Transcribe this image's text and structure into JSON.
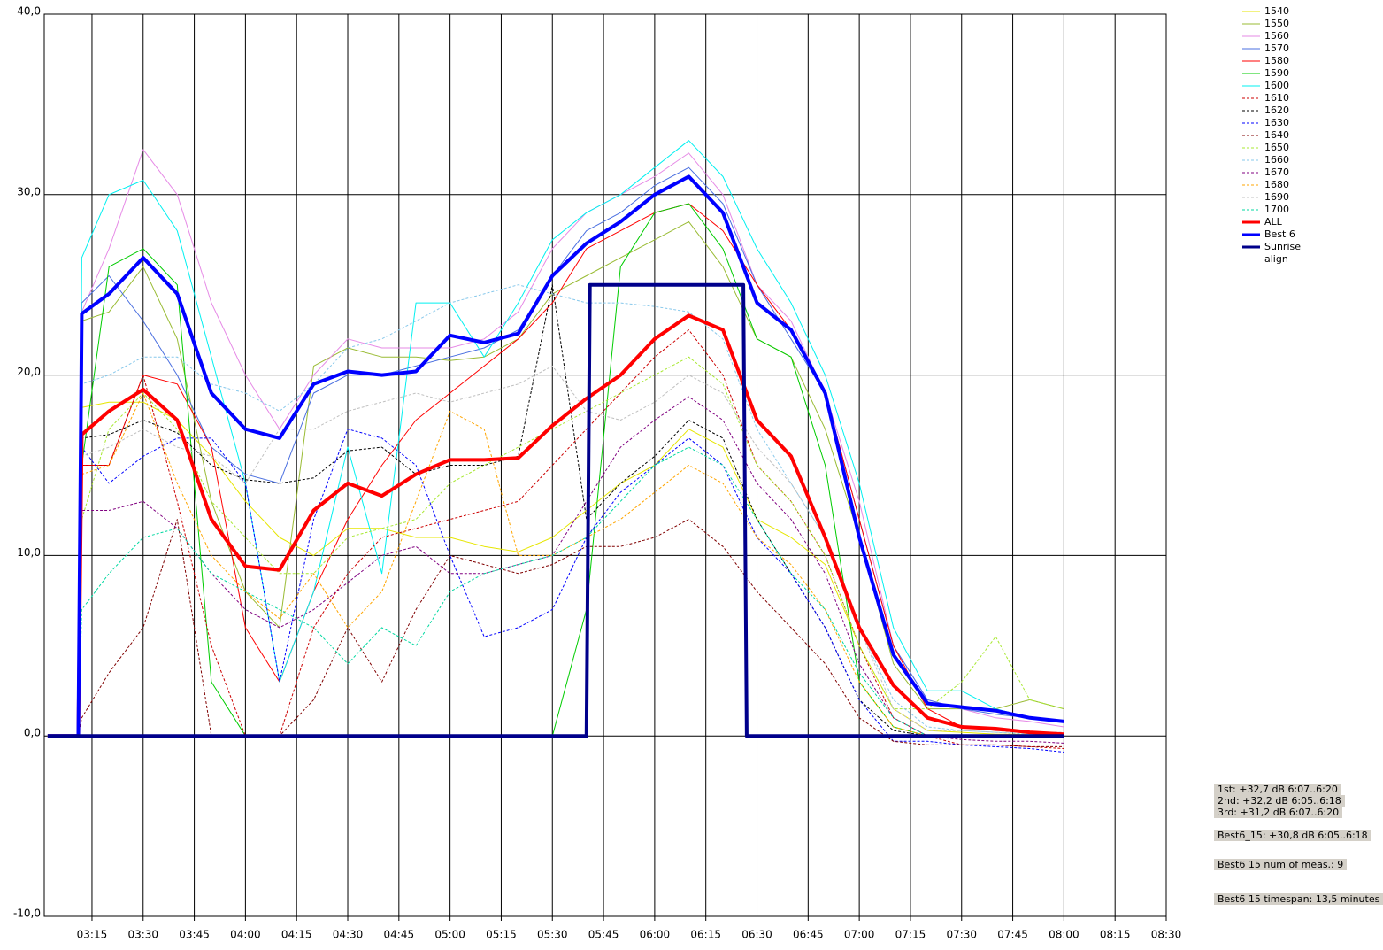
{
  "chart_data": {
    "type": "line",
    "x": [
      "03:02",
      "03:11",
      "03:12",
      "03:20",
      "03:30",
      "03:40",
      "03:50",
      "04:00",
      "04:10",
      "04:20",
      "04:30",
      "04:40",
      "04:50",
      "05:00",
      "05:10",
      "05:20",
      "05:30",
      "05:40",
      "05:50",
      "06:00",
      "06:10",
      "06:20",
      "06:30",
      "06:40",
      "06:50",
      "07:00",
      "07:10",
      "07:20",
      "07:30",
      "07:40",
      "07:50",
      "08:00"
    ],
    "xlim": [
      "03:01",
      "08:30"
    ],
    "xticks": [
      "03:15",
      "03:30",
      "03:45",
      "04:00",
      "04:15",
      "04:30",
      "04:45",
      "05:00",
      "05:15",
      "05:30",
      "05:45",
      "06:00",
      "06:15",
      "06:30",
      "06:45",
      "07:00",
      "07:15",
      "07:30",
      "07:45",
      "08:00",
      "08:15",
      "08:30"
    ],
    "ylim": [
      -10,
      40
    ],
    "yticks": [
      {
        "value": -10,
        "label": "-10,0"
      },
      {
        "value": 0,
        "label": "0,0"
      },
      {
        "value": 10,
        "label": "10,0"
      },
      {
        "value": 20,
        "label": "20,0"
      },
      {
        "value": 30,
        "label": "30,0"
      },
      {
        "value": 40,
        "label": "40,0"
      }
    ],
    "grid": true,
    "legend": "right",
    "series": [
      {
        "name": "1540",
        "color": "#e6e600",
        "values": [
          0,
          0,
          18.2,
          18.5,
          18.5,
          17.5,
          15.5,
          13,
          11,
          10,
          11.5,
          11.5,
          11,
          11,
          10.5,
          10.2,
          11,
          12.5,
          14,
          15,
          17,
          16,
          12,
          11,
          9.5,
          5,
          1.5,
          0.3,
          0.2,
          0.1,
          0.1,
          0
        ]
      },
      {
        "name": "1550",
        "color": "#99bb33",
        "values": [
          0,
          0,
          23,
          23.5,
          26,
          22,
          13,
          8,
          6,
          20.5,
          21.5,
          21,
          21,
          20.8,
          21,
          22,
          24.5,
          25.5,
          26.5,
          27.5,
          28.5,
          26,
          22,
          21,
          17,
          11,
          4,
          1.5,
          1.5,
          1.5,
          2,
          1.5
        ]
      },
      {
        "name": "1560",
        "color": "#e68ae6",
        "values": [
          0,
          0,
          23.5,
          27,
          32.5,
          30,
          24,
          20,
          17,
          20,
          22,
          21.5,
          21.5,
          21.5,
          22,
          23.5,
          27,
          29,
          30,
          31,
          32.3,
          30,
          25,
          23,
          19,
          13,
          5,
          2,
          1.5,
          1,
          0.8,
          0.5
        ]
      },
      {
        "name": "1570",
        "color": "#4a6fe0",
        "values": [
          0,
          0,
          24,
          25.5,
          23,
          20,
          16,
          14.5,
          14,
          19,
          20,
          20,
          20.5,
          21,
          21.5,
          22.5,
          25.5,
          28,
          29,
          30.5,
          31.5,
          29.5,
          25,
          22,
          19,
          12,
          5,
          2,
          1.5,
          1.2,
          1,
          0.8
        ]
      },
      {
        "name": "1580",
        "color": "#ff0000",
        "values": [
          0,
          0,
          15,
          15,
          20,
          19.5,
          16,
          6,
          3,
          8,
          12,
          15,
          17.5,
          19,
          20.5,
          22,
          24,
          27,
          28,
          29,
          29.5,
          28,
          25,
          22.5,
          19,
          12,
          5,
          1.5,
          0.5,
          0.3,
          0.2,
          0.1
        ]
      },
      {
        "name": "1590",
        "color": "#00cc00",
        "values": [
          0,
          0,
          15,
          26,
          27,
          25,
          3,
          0,
          0,
          0,
          0,
          0,
          0,
          0,
          0,
          0,
          0,
          7,
          26,
          29,
          29.5,
          27,
          22,
          21,
          15,
          3,
          0.5,
          0,
          0,
          0,
          0,
          0
        ]
      },
      {
        "name": "1600",
        "color": "#00f0f0",
        "values": [
          0,
          0,
          26.5,
          30,
          30.8,
          28,
          21,
          14,
          3,
          8,
          16,
          9,
          24,
          24,
          21,
          24,
          27.5,
          29,
          30,
          31.5,
          33,
          31,
          27,
          24,
          20,
          14,
          6,
          2.5,
          2.5,
          1.5,
          1,
          0.8
        ]
      },
      {
        "name": "1610",
        "color": "#cc0000",
        "dashed": true,
        "values": [
          0,
          0,
          15,
          15,
          20,
          13,
          5,
          0,
          0,
          6,
          9,
          11,
          11.5,
          12,
          12.5,
          13,
          15,
          17,
          19,
          21,
          22.5,
          20,
          15,
          13,
          10,
          5,
          1,
          0,
          -0.5,
          -0.5,
          -0.6,
          -0.7
        ]
      },
      {
        "name": "1620",
        "color": "#000000",
        "dashed": true,
        "values": [
          0,
          0,
          16.5,
          16.7,
          17.5,
          16.8,
          15,
          14.2,
          14,
          14.3,
          15.8,
          16,
          14.5,
          15,
          15,
          15.5,
          25,
          12,
          14,
          15.5,
          17.5,
          16.5,
          12,
          9,
          6,
          2,
          0.3,
          0,
          0,
          0,
          0,
          0
        ]
      },
      {
        "name": "1630",
        "color": "#0000ff",
        "dashed": true,
        "values": [
          0,
          0,
          16,
          14,
          15.5,
          16.5,
          16.5,
          14,
          3,
          12,
          17,
          16.5,
          15,
          10,
          5.5,
          6,
          7,
          11,
          13.5,
          15,
          16.5,
          15,
          11,
          9,
          6,
          2,
          -0.3,
          -0.3,
          -0.5,
          -0.6,
          -0.7,
          -0.9
        ]
      },
      {
        "name": "1640",
        "color": "#800000",
        "dashed": true,
        "values": [
          0,
          0,
          1,
          3.5,
          6,
          12,
          0,
          0,
          0,
          2,
          6,
          3,
          7,
          10,
          9.5,
          9,
          9.5,
          10.5,
          10.5,
          11,
          12,
          10.5,
          8,
          6,
          4,
          1,
          -0.3,
          -0.5,
          -0.5,
          -0.5,
          -0.6,
          -0.6
        ]
      },
      {
        "name": "1650",
        "color": "#a8e830",
        "dashed": true,
        "values": [
          0,
          0,
          12,
          17,
          19,
          17,
          13,
          11,
          9,
          9,
          11,
          11.5,
          12,
          14,
          15,
          16,
          17,
          18,
          19,
          20,
          21,
          19.5,
          15,
          13,
          10,
          5,
          1.5,
          1.5,
          3,
          5.5,
          2,
          1.5
        ]
      },
      {
        "name": "1660",
        "color": "#87c8eb",
        "dashed": true,
        "values": [
          0,
          0,
          19.5,
          20,
          21,
          21,
          19.5,
          19,
          18,
          19.5,
          21.5,
          22,
          23,
          24,
          24.5,
          25,
          24.5,
          24,
          24,
          23.8,
          23.5,
          22,
          17,
          14,
          11,
          6,
          2,
          0.5,
          0.3,
          0.2,
          0.1,
          0
        ]
      },
      {
        "name": "1670",
        "color": "#800080",
        "dashed": true,
        "values": [
          0,
          0,
          12.5,
          12.5,
          13,
          11.5,
          9,
          7,
          6,
          7,
          8.5,
          10,
          10.5,
          9,
          9,
          9.5,
          10,
          13,
          16,
          17.5,
          18.8,
          17.5,
          14,
          12,
          9,
          4,
          1,
          0,
          -0.2,
          -0.3,
          -0.3,
          -0.4
        ]
      },
      {
        "name": "1680",
        "color": "#ffa500",
        "dashed": true,
        "values": [
          0,
          0,
          14.5,
          15,
          19,
          14,
          10,
          8,
          6.5,
          9,
          6,
          8,
          13,
          18,
          17,
          10,
          10,
          11,
          12,
          13.5,
          15,
          14,
          11,
          9.5,
          7,
          3,
          0.5,
          0,
          0,
          0,
          0,
          0
        ]
      },
      {
        "name": "1690",
        "color": "#c0c0c0",
        "dashed": true,
        "values": [
          0,
          0,
          15.5,
          16,
          17,
          16,
          15.5,
          14,
          17,
          17,
          18,
          18.5,
          19,
          18.5,
          19,
          19.5,
          20.5,
          18,
          17.5,
          18.5,
          20,
          19,
          16,
          14,
          11,
          6,
          1.5,
          0.3,
          0.3,
          0.2,
          0.2,
          0.2
        ]
      },
      {
        "name": "1700",
        "color": "#00d8a0",
        "dashed": true,
        "values": [
          0,
          0,
          7,
          9,
          11,
          11.5,
          9,
          8,
          7,
          6,
          4,
          6,
          5,
          8,
          9,
          9.5,
          10,
          11,
          13,
          15,
          16,
          15,
          12,
          9,
          7,
          3.5,
          1,
          0,
          0,
          0,
          0,
          0
        ]
      },
      {
        "name": "ALL",
        "color": "#ff0000",
        "thick": true,
        "values": [
          0,
          0,
          16.7,
          18,
          19.2,
          17.5,
          12,
          9.4,
          9.2,
          12.5,
          14,
          13.3,
          14.5,
          15.3,
          15.3,
          15.4,
          17.2,
          18.7,
          20,
          22,
          23.3,
          22.5,
          17.5,
          15.5,
          11,
          6,
          2.8,
          1,
          0.5,
          0.4,
          0.2,
          0.1
        ]
      },
      {
        "name": "Best 6",
        "color": "#0000ff",
        "thick": true,
        "values": [
          0,
          0,
          23.4,
          24.5,
          26.5,
          24.5,
          19,
          17,
          16.5,
          19.5,
          20.2,
          20,
          20.2,
          22.2,
          21.8,
          22.3,
          25.5,
          27.3,
          28.5,
          30,
          31,
          29,
          24,
          22.5,
          19,
          11,
          4.5,
          1.8,
          1.6,
          1.4,
          1,
          0.8
        ]
      },
      {
        "name": "Sunrise align",
        "color": "#00008b",
        "thick": true,
        "x": [
          "03:02",
          "05:40",
          "05:41",
          "06:26",
          "06:27",
          "08:00"
        ],
        "values": [
          0,
          0,
          25,
          25,
          0,
          0
        ]
      }
    ],
    "annotations": [
      "1st: +32,7 dB 6:07..6:20",
      "2nd: +32,2 dB 6:05..6:18",
      "3rd: +31,2 dB 6:07..6:20",
      "Best6_15: +30,8 dB 6:05..6:18",
      "Best6 15 num of meas.: 9",
      "Best6 15 timespan: 13,5 minutes"
    ]
  }
}
